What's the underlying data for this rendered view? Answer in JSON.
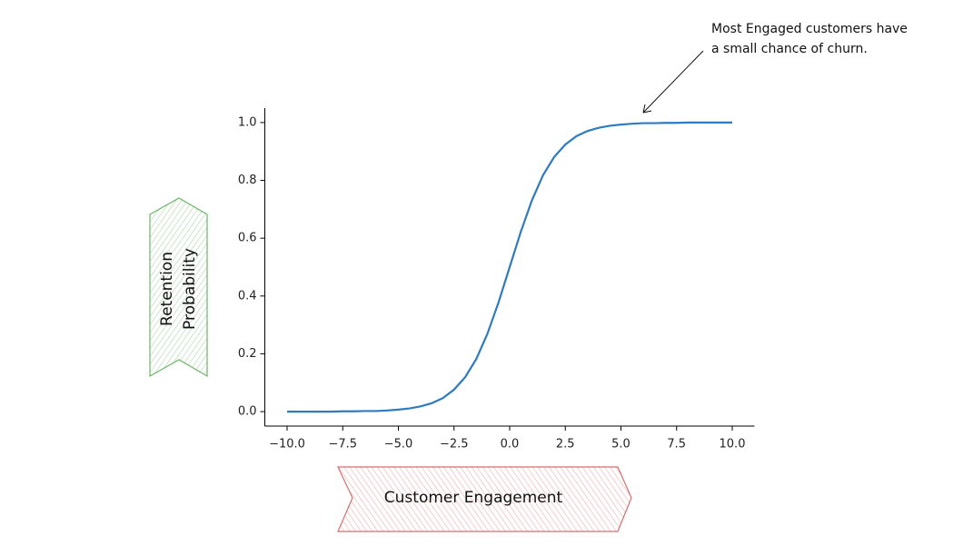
{
  "chart_data": {
    "type": "line",
    "xlabel": "Customer Engagement",
    "ylabel": [
      "Retention",
      "Probability"
    ],
    "annotation": [
      "Most Engaged customers have",
      "a small chance of churn."
    ],
    "x": [
      -10,
      -9.5,
      -9,
      -8.5,
      -8,
      -7.5,
      -7,
      -6.5,
      -6,
      -5.5,
      -5,
      -4.5,
      -4,
      -3.5,
      -3,
      -2.5,
      -2,
      -1.5,
      -1,
      -0.5,
      0,
      0.5,
      1,
      1.5,
      2,
      2.5,
      3,
      3.5,
      4,
      4.5,
      5,
      5.5,
      6,
      6.5,
      7,
      7.5,
      8,
      8.5,
      9,
      9.5,
      10
    ],
    "values": [
      0.0,
      0.0,
      0.0,
      0.0,
      0.0,
      0.001,
      0.001,
      0.002,
      0.002,
      0.004,
      0.007,
      0.011,
      0.018,
      0.029,
      0.047,
      0.076,
      0.119,
      0.182,
      0.269,
      0.378,
      0.5,
      0.622,
      0.731,
      0.818,
      0.881,
      0.924,
      0.953,
      0.971,
      0.982,
      0.989,
      0.993,
      0.996,
      0.998,
      0.998,
      0.999,
      0.999,
      1.0,
      1.0,
      1.0,
      1.0,
      1.0
    ],
    "color": "#2f7bbf",
    "xlim": [
      -11,
      11
    ],
    "ylim": [
      -0.05,
      1.05
    ],
    "xticks": [
      {
        "value": -10,
        "label": "−10.0"
      },
      {
        "value": -7.5,
        "label": "−7.5"
      },
      {
        "value": -5,
        "label": "−5.0"
      },
      {
        "value": -2.5,
        "label": "−2.5"
      },
      {
        "value": 0,
        "label": "0.0"
      },
      2.5,
      {
        "value": 5,
        "label": "5.0"
      },
      7.5,
      {
        "value": 10,
        "label": "10.0"
      }
    ],
    "yticks": [
      {
        "value": 0,
        "label": "0.0"
      },
      0.2,
      0.4,
      0.6,
      0.8,
      {
        "value": 1,
        "label": "1.0"
      }
    ]
  }
}
